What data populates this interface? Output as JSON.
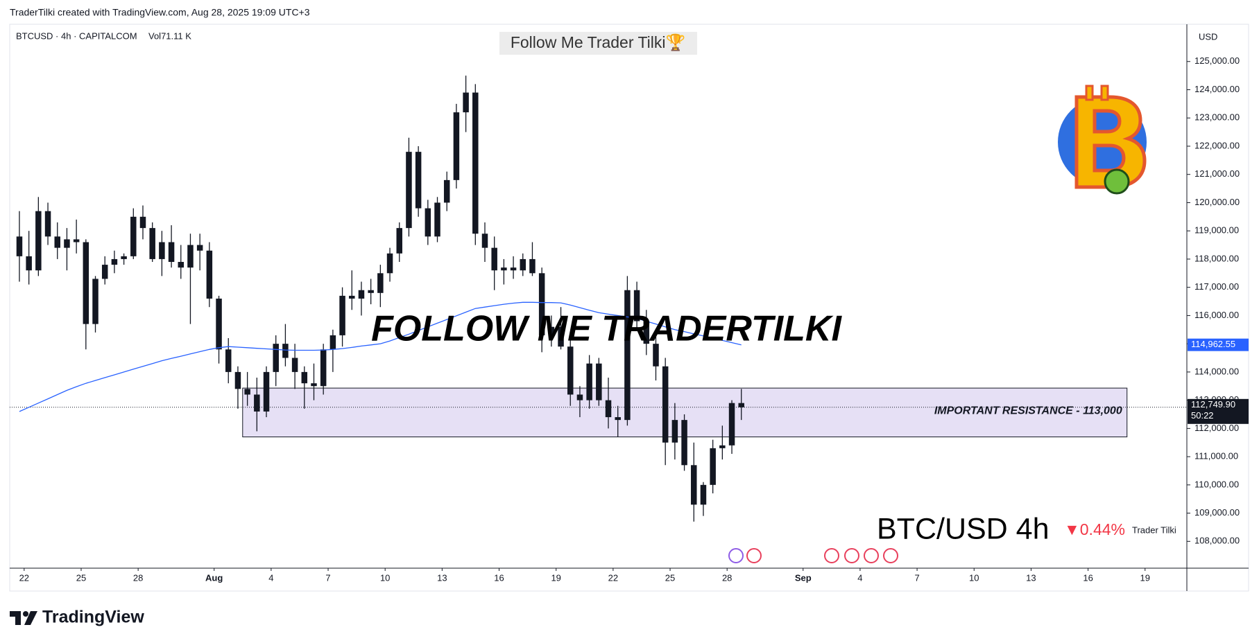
{
  "header": "TraderTilki created with TradingView.com, Aug 28, 2025 19:09 UTC+3",
  "footer_logo": "TradingView",
  "chart_data": {
    "type": "candlestick",
    "title": "BTCUSD · 4h · CAPITALCOM",
    "volume_label": "Vol71.11 K",
    "banner": "Follow Me Trader Tilki🏆",
    "watermark": "FOLLOW ME TRADERTILKI",
    "caption": "BTC/USD 4h",
    "change_label": "▼0.44%",
    "author": "Trader Tilki",
    "currency": "USD",
    "open": [
      118800,
      118100,
      117600,
      119700,
      118800,
      118400,
      118700,
      118600,
      115700,
      117300,
      117800,
      118000,
      118100,
      119500,
      119100,
      118000,
      118600,
      117900,
      117700,
      118500,
      118300,
      116600,
      114800,
      114000,
      113400,
      113200,
      112600,
      114000,
      115000,
      114500,
      114000,
      113600,
      113500,
      114800,
      115300,
      116700,
      116600,
      116900,
      116800,
      117500,
      118200,
      119100,
      121800,
      119800,
      118800,
      120000,
      120800,
      123200,
      123900,
      118900,
      118400,
      117600,
      117700,
      117600,
      118000,
      117500,
      115300,
      115600,
      114900,
      113200,
      113000,
      114300,
      113000,
      112400,
      112300,
      116900,
      115800,
      115000,
      114200,
      111500,
      112300,
      110700,
      109300,
      110000,
      111300,
      111400,
      112900
    ],
    "high": [
      119700,
      119000,
      120200,
      120000,
      119300,
      119100,
      119400,
      118700,
      117400,
      118100,
      118300,
      118200,
      119800,
      119900,
      119300,
      119000,
      119200,
      118500,
      118900,
      118900,
      118600,
      116700,
      115200,
      114200,
      114000,
      113800,
      114200,
      115300,
      115700,
      115000,
      114200,
      114300,
      115000,
      115500,
      117000,
      117600,
      117200,
      117300,
      117800,
      118400,
      119300,
      122300,
      122000,
      120100,
      120200,
      121100,
      123500,
      124500,
      124200,
      119300,
      118800,
      118000,
      118100,
      118200,
      118600,
      117700,
      116000,
      116300,
      115200,
      113500,
      114600,
      114500,
      113800,
      112800,
      117400,
      117200,
      116200,
      115300,
      114500,
      112900,
      112500,
      111500,
      110100,
      111600,
      112100,
      113000,
      113400
    ],
    "low": [
      117200,
      117100,
      117400,
      118500,
      118000,
      117600,
      118200,
      114800,
      115400,
      117100,
      117500,
      117800,
      118000,
      118700,
      117900,
      117400,
      117700,
      117300,
      115700,
      117600,
      116300,
      114300,
      113600,
      112700,
      112800,
      111900,
      112400,
      113500,
      114200,
      113400,
      112700,
      113000,
      113200,
      114000,
      114900,
      116200,
      116000,
      116400,
      116300,
      117200,
      117900,
      118800,
      119500,
      118500,
      118600,
      119700,
      120500,
      122500,
      118500,
      117900,
      116900,
      117100,
      117300,
      117400,
      117400,
      114700,
      114900,
      114800,
      112800,
      112400,
      112700,
      112800,
      112000,
      111700,
      112100,
      115500,
      114600,
      113700,
      110700,
      110900,
      110500,
      108700,
      108900,
      109700,
      110900,
      111100,
      112300
    ],
    "close": [
      118100,
      117600,
      119700,
      118800,
      118400,
      118700,
      118600,
      115700,
      117300,
      117800,
      118000,
      118100,
      119500,
      119100,
      118000,
      118600,
      117900,
      117700,
      118500,
      118300,
      116600,
      114800,
      114000,
      113400,
      113200,
      112600,
      114000,
      115000,
      114500,
      114000,
      113600,
      113500,
      114800,
      115300,
      116700,
      116600,
      116900,
      116800,
      117500,
      118200,
      119100,
      121800,
      119800,
      118800,
      120000,
      120800,
      123200,
      123900,
      118900,
      118400,
      117600,
      117700,
      117600,
      118000,
      117500,
      115300,
      115600,
      114900,
      113200,
      113000,
      114300,
      113000,
      112400,
      112300,
      116900,
      115800,
      115000,
      114200,
      111500,
      112300,
      110700,
      109300,
      110000,
      111300,
      111400,
      112900,
      112750
    ],
    "up_color": "#131722",
    "down_color": "#131722",
    "moving_average": {
      "color": "#2962ff",
      "last_value_label": "114,962.55",
      "values": [
        112600,
        112750,
        112900,
        113050,
        113200,
        113350,
        113480,
        113600,
        113700,
        113800,
        113900,
        114000,
        114100,
        114200,
        114300,
        114400,
        114480,
        114560,
        114640,
        114720,
        114800,
        114860,
        114900,
        114880,
        114860,
        114840,
        114820,
        114800,
        114780,
        114770,
        114770,
        114770,
        114780,
        114800,
        114830,
        114870,
        114920,
        114960,
        115000,
        115100,
        115220,
        115340,
        115470,
        115600,
        115730,
        115860,
        115990,
        116120,
        116250,
        116300,
        116350,
        116400,
        116440,
        116470,
        116470,
        116460,
        116460,
        116450,
        116370,
        116280,
        116190,
        116100,
        116050,
        116000,
        115950,
        115900,
        115800,
        115700,
        115600,
        115500,
        115430,
        115350,
        115280,
        115200,
        115120,
        115040,
        114962.55
      ]
    },
    "last_price": {
      "value": 112749.9,
      "label": "112,749.90",
      "countdown": "50:22"
    },
    "zone": {
      "label": "IMPORTANT RESISTANCE - 113,000",
      "top": 113430,
      "bottom": 111700,
      "start": 25,
      "end": 118.1,
      "color": "#e6e0f5"
    },
    "xlim": [
      0.48,
      124.4
    ],
    "ylim": [
      107050,
      126320
    ],
    "xticks": [
      {
        "value": 2,
        "label": "22"
      },
      {
        "value": 8,
        "label": "25"
      },
      {
        "value": 14,
        "label": "28"
      },
      {
        "value": 22,
        "label": "Aug"
      },
      {
        "value": 28,
        "label": "4"
      },
      {
        "value": 34,
        "label": "7"
      },
      {
        "value": 40,
        "label": "10"
      },
      {
        "value": 46,
        "label": "13"
      },
      {
        "value": 52,
        "label": "16"
      },
      {
        "value": 58,
        "label": "19"
      },
      {
        "value": 64,
        "label": "22"
      },
      {
        "value": 70,
        "label": "25"
      },
      {
        "value": 76,
        "label": "28"
      },
      {
        "value": 84,
        "label": "Sep"
      },
      {
        "value": 90,
        "label": "4"
      },
      {
        "value": 96,
        "label": "7"
      },
      {
        "value": 102,
        "label": "10"
      },
      {
        "value": 108,
        "label": "13"
      },
      {
        "value": 114,
        "label": "16"
      },
      {
        "value": 120,
        "label": "19"
      }
    ],
    "yticks": [
      {
        "value": 108000,
        "label": "108,000.00"
      },
      {
        "value": 109000,
        "label": "109,000.00"
      },
      {
        "value": 110000,
        "label": "110,000.00"
      },
      {
        "value": 111000,
        "label": "111,000.00"
      },
      {
        "value": 112000,
        "label": "112,000.00"
      },
      {
        "value": 113000,
        "label": "113,000.00"
      },
      {
        "value": 114000,
        "label": "114,000.00"
      },
      {
        "value": 115000,
        "label": "115,000.00"
      },
      {
        "value": 116000,
        "label": "116,000.00"
      },
      {
        "value": 117000,
        "label": "117,000.00"
      },
      {
        "value": 118000,
        "label": "118,000.00"
      },
      {
        "value": 119000,
        "label": "119,000.00"
      },
      {
        "value": 120000,
        "label": "120,000.00"
      },
      {
        "value": 121000,
        "label": "121,000.00"
      },
      {
        "value": 122000,
        "label": "122,000.00"
      },
      {
        "value": 123000,
        "label": "123,000.00"
      },
      {
        "value": 124000,
        "label": "124,000.00"
      },
      {
        "value": 125000,
        "label": "125,000.00"
      }
    ],
    "grid": false
  }
}
